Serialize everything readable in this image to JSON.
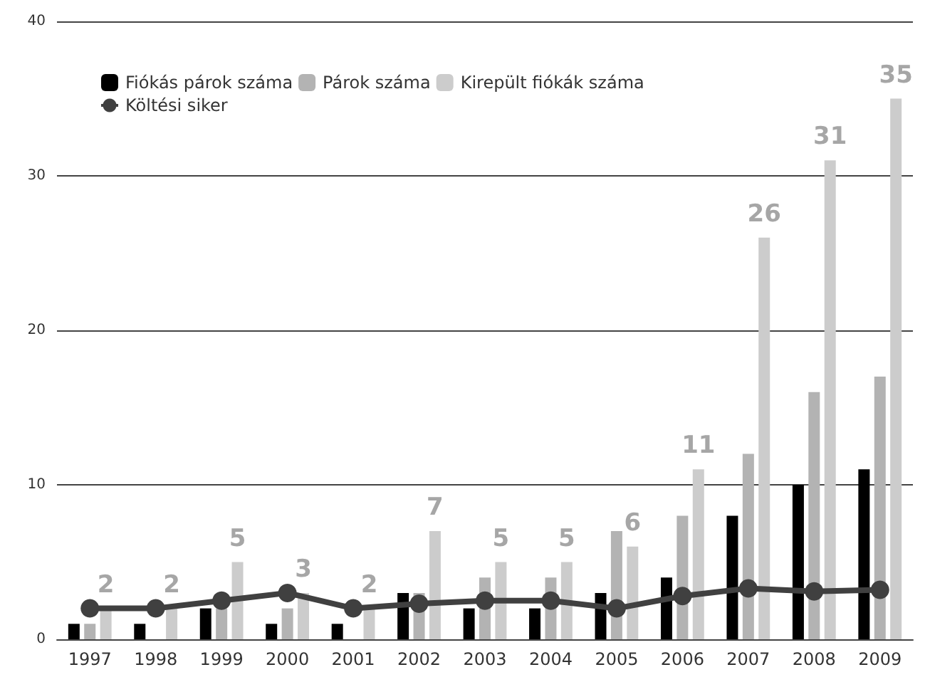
{
  "chart_data": {
    "type": "bar",
    "categories": [
      "1997",
      "1998",
      "1999",
      "2000",
      "2001",
      "2002",
      "2003",
      "2004",
      "2005",
      "2006",
      "2007",
      "2008",
      "2009"
    ],
    "series": [
      {
        "name": "Fiókás párok száma",
        "color": "#000000",
        "values": [
          1,
          1,
          2,
          1,
          1,
          3,
          2,
          2,
          3,
          4,
          8,
          10,
          11
        ]
      },
      {
        "name": "Párok száma",
        "color": "#b3b3b3",
        "values": [
          1,
          null,
          2,
          2,
          null,
          3,
          4,
          4,
          7,
          8,
          12,
          16,
          17
        ]
      },
      {
        "name": "Kirepült fiókák száma",
        "color": "#cccccc",
        "values": [
          2,
          2,
          5,
          3,
          2,
          7,
          5,
          5,
          6,
          11,
          26,
          31,
          35
        ],
        "value_labels": [
          "2",
          "2",
          "5",
          "3",
          "2",
          "7",
          "5",
          "5",
          "6",
          "11",
          "26",
          "31",
          "35"
        ]
      },
      {
        "name": "Költési siker",
        "type": "line",
        "color": "#404040",
        "values": [
          2,
          2,
          2.5,
          3,
          2,
          2.3,
          2.5,
          2.5,
          2,
          2.8,
          3.3,
          3.1,
          3.2
        ]
      }
    ],
    "ylim": [
      0,
      40
    ],
    "yticks": [
      0,
      10,
      20,
      30,
      40
    ],
    "grid": "y",
    "legend": "top left",
    "marker": "circle"
  }
}
